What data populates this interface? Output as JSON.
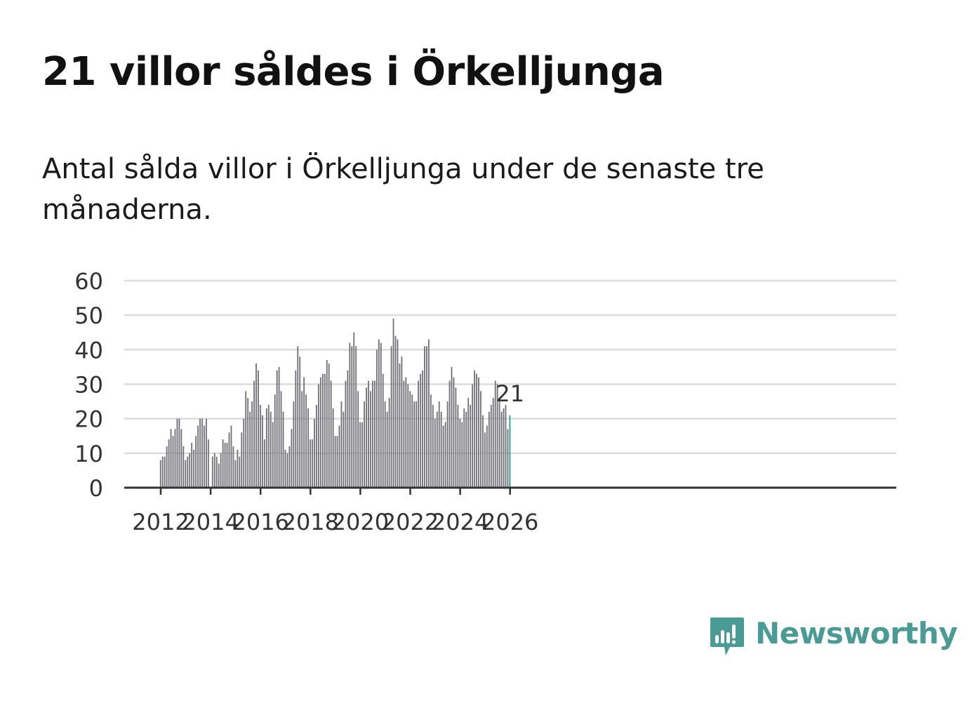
{
  "header": {
    "title": "21 villor såldes i Örkelljunga",
    "subtitle": "Antal sålda villor i Örkelljunga under de senaste tre månaderna."
  },
  "brand": {
    "name": "Newsworthy",
    "icon": "newsworthy-logo-icon",
    "color": "#4a9a96"
  },
  "colors": {
    "bar": "#74737a",
    "highlight": "#2a9d96",
    "grid": "#dcdcdc",
    "axis": "#333333"
  },
  "chart_data": {
    "type": "bar",
    "title": "Antal sålda villor",
    "xlabel": "",
    "ylabel": "",
    "ylim": [
      0,
      60
    ],
    "yticks": [
      "0",
      "10",
      "20",
      "30",
      "40",
      "50",
      "60"
    ],
    "xticks": [
      "2012",
      "2014",
      "2016",
      "2018",
      "2020",
      "2022",
      "2024",
      "2026"
    ],
    "x_start_year": 2012,
    "x_end_year": 2026,
    "grid": true,
    "highlight_label": "21",
    "values": [
      8,
      9,
      9,
      12,
      14,
      17,
      15,
      17,
      20,
      20,
      17,
      12,
      8,
      9,
      10,
      13,
      11,
      15,
      18,
      20,
      20,
      18,
      20,
      14,
      0,
      9,
      10,
      9,
      7,
      10,
      14,
      13,
      13,
      16,
      18,
      12,
      8,
      11,
      9,
      16,
      20,
      28,
      26,
      22,
      25,
      31,
      36,
      34,
      24,
      21,
      14,
      23,
      24,
      22,
      19,
      27,
      34,
      35,
      28,
      22,
      11,
      10,
      12,
      17,
      25,
      34,
      41,
      38,
      28,
      32,
      27,
      23,
      14,
      14,
      20,
      24,
      30,
      32,
      33,
      33,
      37,
      36,
      31,
      23,
      15,
      15,
      18,
      25,
      22,
      31,
      34,
      42,
      41,
      45,
      41,
      28,
      19,
      19,
      25,
      29,
      31,
      28,
      31,
      31,
      40,
      43,
      42,
      33,
      25,
      22,
      26,
      41,
      49,
      44,
      43,
      36,
      38,
      31,
      32,
      30,
      28,
      27,
      25,
      25,
      31,
      33,
      34,
      41,
      41,
      43,
      27,
      24,
      20,
      22,
      25,
      22,
      18,
      19,
      25,
      31,
      35,
      32,
      29,
      24,
      20,
      19,
      23,
      22,
      26,
      24,
      30,
      34,
      33,
      32,
      28,
      21,
      16,
      18,
      22,
      24,
      26,
      31,
      30,
      25,
      22,
      23,
      24,
      17,
      21
    ]
  }
}
